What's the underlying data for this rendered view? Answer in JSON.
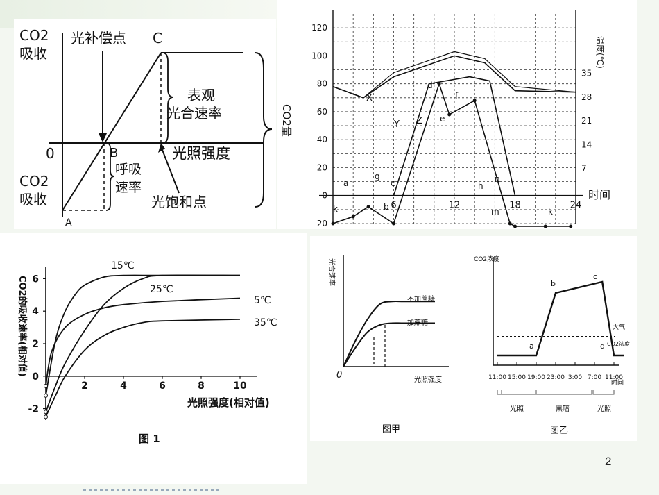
{
  "slide": {
    "page_number": "2"
  },
  "chart_data": [
    {
      "type": "line",
      "panel": "top-left",
      "labels": {
        "y_top_line1": "CO2",
        "y_top_line2": "吸收",
        "y_bottom_line1": "CO2",
        "y_bottom_line2": "吸收",
        "origin": "0",
        "xlabel": "光照强度",
        "compensation_point": "光补偿点",
        "point_c": "C",
        "point_b": "B",
        "point_a": "A",
        "apparent_rate_line1": "表观",
        "apparent_rate_line2": "光合速率",
        "resp_line1": "呼吸",
        "resp_line2": "速率",
        "saturation_point": "光饱和点"
      }
    },
    {
      "type": "line",
      "panel": "top-right",
      "ylabel": "CO2量",
      "y2label": "温度(℃)",
      "xlabel": "时间",
      "y_ticks": [
        -20,
        0,
        20,
        40,
        60,
        80,
        100,
        120
      ],
      "y2_ticks": [
        7,
        14,
        21,
        28,
        35
      ],
      "x_ticks": [
        6,
        12,
        18,
        24
      ],
      "xlim": [
        0,
        24
      ],
      "ylim": [
        -20,
        130
      ],
      "curve_labels": [
        "X",
        "Y",
        "Z"
      ],
      "point_labels": [
        "a",
        "b",
        "c",
        "d",
        "e",
        "f",
        "g",
        "h",
        "k",
        "m",
        "n",
        "k"
      ],
      "series": [
        {
          "name": "X",
          "points": [
            [
              0,
              78
            ],
            [
              3,
              70
            ],
            [
              6,
              85
            ],
            [
              12,
              100
            ],
            [
              15,
              95
            ],
            [
              18,
              75
            ],
            [
              24,
              74
            ]
          ]
        },
        {
          "name": "Y",
          "points": [
            [
              6,
              0
            ],
            [
              9.5,
              80
            ],
            [
              13.5,
              85
            ],
            [
              15.5,
              82
            ],
            [
              18,
              0
            ]
          ]
        },
        {
          "name": "Z",
          "points": [
            [
              0,
              -20
            ],
            [
              2,
              -15
            ],
            [
              3.5,
              -8
            ],
            [
              6,
              -20
            ],
            [
              10.5,
              80
            ],
            [
              11.5,
              58
            ],
            [
              14,
              68
            ],
            [
              17.5,
              -20
            ],
            [
              18,
              -22
            ],
            [
              21,
              -22
            ],
            [
              23.5,
              -22
            ]
          ]
        }
      ]
    },
    {
      "type": "line",
      "panel": "bottom-left",
      "title": "图 1",
      "ylabel": "CO2的吸收速率(相对值)",
      "xlabel": "光照强度(相对值)",
      "y_ticks": [
        -2,
        0,
        2,
        4,
        6
      ],
      "x_ticks": [
        2,
        4,
        6,
        8,
        10
      ],
      "xlim": [
        0,
        10.5
      ],
      "ylim": [
        -2.7,
        6.7
      ],
      "series": [
        {
          "name": "15℃",
          "points": [
            [
              0,
              -1.2
            ],
            [
              0.5,
              2.2
            ],
            [
              1,
              4.0
            ],
            [
              1.5,
              5.0
            ],
            [
              2,
              5.6
            ],
            [
              3,
              6.1
            ],
            [
              4,
              6.2
            ],
            [
              6,
              6.2
            ],
            [
              10,
              6.2
            ]
          ]
        },
        {
          "name": "25℃",
          "points": [
            [
              0,
              -2.2
            ],
            [
              0.5,
              -0.6
            ],
            [
              1,
              0.8
            ],
            [
              2,
              2.8
            ],
            [
              3,
              4.4
            ],
            [
              4,
              5.4
            ],
            [
              5,
              6.0
            ],
            [
              6,
              6.2
            ],
            [
              10,
              6.2
            ]
          ]
        },
        {
          "name": "5℃",
          "points": [
            [
              0,
              -0.6
            ],
            [
              0.3,
              1.5
            ],
            [
              1,
              3.0
            ],
            [
              2,
              3.8
            ],
            [
              3,
              4.2
            ],
            [
              4,
              4.4
            ],
            [
              6,
              4.6
            ],
            [
              10,
              4.8
            ]
          ]
        },
        {
          "name": "35℃",
          "points": [
            [
              0,
              -2.5
            ],
            [
              0.5,
              -1.2
            ],
            [
              1,
              0
            ],
            [
              2,
              1.6
            ],
            [
              3,
              2.5
            ],
            [
              4,
              3.0
            ],
            [
              5,
              3.3
            ],
            [
              6,
              3.4
            ],
            [
              10,
              3.5
            ]
          ]
        }
      ]
    },
    {
      "type": "line",
      "panel": "bottom-middle",
      "title": "图甲",
      "ylabel": "光合速率",
      "xlabel": "光照强度",
      "origin": "0",
      "series": [
        {
          "name": "不加蔗糖",
          "points": [
            [
              0,
              0
            ],
            [
              2,
              3
            ],
            [
              4,
              5.5
            ],
            [
              6,
              7.2
            ],
            [
              8,
              7.5
            ],
            [
              10,
              7.5
            ]
          ]
        },
        {
          "name": "加蔗糖",
          "points": [
            [
              0,
              0
            ],
            [
              2,
              2.2
            ],
            [
              4,
              4
            ],
            [
              6,
              4.8
            ],
            [
              8,
              5
            ],
            [
              10,
              5
            ]
          ]
        }
      ]
    },
    {
      "type": "line",
      "panel": "bottom-right",
      "title": "图乙",
      "ylabel": "CO2浓度",
      "xlabel": "时间",
      "x_ticks": [
        "11:00",
        "15:00",
        "19:00",
        "23:00",
        "3:00",
        "7:00",
        "11:00"
      ],
      "periods": [
        "光照",
        "黑暗",
        "光照"
      ],
      "reference_line_line1": "大气",
      "reference_line_line2": "CO2浓度",
      "point_labels": [
        "a",
        "b",
        "c",
        "d"
      ],
      "series": [
        {
          "name": "",
          "points": [
            [
              0,
              1
            ],
            [
              2,
              1
            ],
            [
              3,
              5.5
            ],
            [
              5.4,
              6.3
            ],
            [
              6,
              1
            ],
            [
              6.5,
              1
            ]
          ]
        }
      ]
    }
  ]
}
